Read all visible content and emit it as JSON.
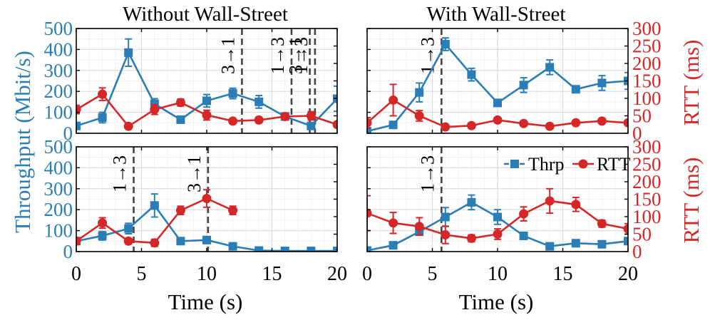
{
  "colors": {
    "throughput": "#2a7db5",
    "rtt": "#d62728",
    "vline": "#444444",
    "grid": "#dcdcdc",
    "axis": "#000000"
  },
  "labels": {
    "title_left": "Without Wall-Street",
    "title_right": "With Wall-Street",
    "ylabel_left": "Throughput (Mbit/s)",
    "ylabel_right": "RTT (ms)",
    "xlabel": "Time (s)"
  },
  "legend": [
    {
      "name": "Thrp",
      "marker": "square",
      "color_key": "throughput"
    },
    {
      "name": "RTT",
      "marker": "circle",
      "color_key": "rtt"
    }
  ],
  "axes": {
    "x_ticks": [
      "0",
      "5",
      "10",
      "15",
      "20"
    ],
    "y_left_ticks": [
      "0",
      "100",
      "200",
      "300",
      "400",
      "500"
    ],
    "y_right_ticks": [
      "0",
      "50",
      "100",
      "150",
      "200",
      "250",
      "300"
    ]
  },
  "chart_data": [
    {
      "type": "line",
      "row": 0,
      "col": 0,
      "title": "Without Wall-Street",
      "xlabel": "Time (s)",
      "ylabel": "Throughput (Mbit/s)",
      "y2label": "RTT (ms)",
      "xlim": [
        0,
        20
      ],
      "ylim": [
        0,
        500
      ],
      "y2lim": [
        0,
        300
      ],
      "series": [
        {
          "name": "Thrp",
          "axis": "left",
          "x": [
            0,
            2,
            4,
            6,
            8,
            10,
            12,
            14,
            16,
            18,
            20
          ],
          "y": [
            35,
            75,
            385,
            140,
            65,
            155,
            190,
            150,
            80,
            35,
            165
          ],
          "err": [
            10,
            25,
            65,
            25,
            15,
            30,
            25,
            30,
            15,
            10,
            60
          ]
        },
        {
          "name": "RTT",
          "axis": "right",
          "x": [
            0,
            2,
            4,
            6,
            8,
            10,
            12,
            14,
            16,
            18,
            20
          ],
          "y": [
            68,
            112,
            20,
            68,
            88,
            52,
            35,
            38,
            48,
            50,
            25
          ],
          "err": [
            12,
            18,
            5,
            14,
            10,
            14,
            6,
            8,
            8,
            12,
            6
          ]
        }
      ],
      "switches": [
        {
          "x": 12.7,
          "label": "3→1"
        },
        {
          "x": 16.5,
          "label": "1→3"
        },
        {
          "x": 17.9,
          "label": "3→1"
        },
        {
          "x": 18.3,
          "label": "1→3"
        }
      ]
    },
    {
      "type": "line",
      "row": 0,
      "col": 1,
      "title": "With Wall-Street",
      "xlabel": "Time (s)",
      "ylabel": "Throughput (Mbit/s)",
      "y2label": "RTT (ms)",
      "xlim": [
        0,
        20
      ],
      "ylim": [
        0,
        500
      ],
      "y2lim": [
        0,
        300
      ],
      "series": [
        {
          "name": "Thrp",
          "axis": "left",
          "x": [
            0,
            2,
            4,
            6,
            8,
            10,
            12,
            14,
            16,
            18,
            20
          ],
          "y": [
            10,
            40,
            195,
            425,
            280,
            145,
            230,
            315,
            210,
            240,
            250
          ],
          "err": [
            5,
            10,
            45,
            30,
            30,
            10,
            35,
            35,
            15,
            35,
            40
          ]
        },
        {
          "name": "RTT",
          "axis": "right",
          "x": [
            0,
            2,
            4,
            6,
            8,
            10,
            12,
            14,
            16,
            18,
            20
          ],
          "y": [
            30,
            95,
            50,
            18,
            22,
            38,
            28,
            20,
            30,
            35,
            30
          ],
          "err": [
            15,
            45,
            15,
            5,
            5,
            6,
            6,
            5,
            6,
            6,
            6
          ]
        }
      ],
      "switches": [
        {
          "x": 5.7,
          "label": "1→3"
        }
      ]
    },
    {
      "type": "line",
      "row": 1,
      "col": 0,
      "title": "",
      "xlabel": "Time (s)",
      "ylabel": "Throughput (Mbit/s)",
      "y2label": "RTT (ms)",
      "xlim": [
        0,
        20
      ],
      "ylim": [
        0,
        500
      ],
      "y2lim": [
        0,
        300
      ],
      "series": [
        {
          "name": "Thrp",
          "axis": "left",
          "x": [
            0,
            2,
            4,
            6,
            8,
            10,
            12,
            14,
            16,
            18,
            20
          ],
          "y": [
            50,
            75,
            110,
            220,
            50,
            55,
            25,
            5,
            3,
            3,
            3
          ],
          "err": [
            10,
            20,
            25,
            55,
            10,
            10,
            5,
            2,
            1,
            1,
            1
          ]
        },
        {
          "name": "RTT",
          "axis": "right",
          "x": [
            0,
            2,
            4,
            6,
            8,
            10,
            12
          ],
          "y": [
            30,
            82,
            30,
            25,
            118,
            152,
            118
          ],
          "err": [
            8,
            15,
            8,
            10,
            12,
            25,
            12
          ]
        }
      ],
      "switches": [
        {
          "x": 4.4,
          "label": "1→3"
        },
        {
          "x": 10.1,
          "label": "3→1"
        }
      ]
    },
    {
      "type": "line",
      "row": 1,
      "col": 1,
      "title": "",
      "xlabel": "Time (s)",
      "ylabel": "Throughput (Mbit/s)",
      "y2label": "RTT (ms)",
      "xlim": [
        0,
        20
      ],
      "ylim": [
        0,
        500
      ],
      "y2lim": [
        0,
        300
      ],
      "series": [
        {
          "name": "Thrp",
          "axis": "left",
          "x": [
            0,
            2,
            4,
            6,
            8,
            10,
            12,
            14,
            16,
            18,
            20
          ],
          "y": [
            5,
            30,
            95,
            165,
            235,
            165,
            75,
            25,
            40,
            35,
            50
          ],
          "err": [
            3,
            8,
            15,
            45,
            35,
            35,
            10,
            5,
            10,
            8,
            10
          ]
        },
        {
          "name": "RTT",
          "axis": "right",
          "x": [
            0,
            2,
            4,
            6,
            8,
            10,
            12,
            14,
            16,
            18,
            20
          ],
          "y": [
            110,
            82,
            72,
            48,
            38,
            50,
            108,
            145,
            135,
            80,
            65
          ],
          "err": [
            50,
            30,
            25,
            25,
            10,
            15,
            20,
            35,
            20,
            10,
            15
          ]
        }
      ],
      "switches": [
        {
          "x": 5.7,
          "label": "1→3"
        }
      ]
    }
  ]
}
